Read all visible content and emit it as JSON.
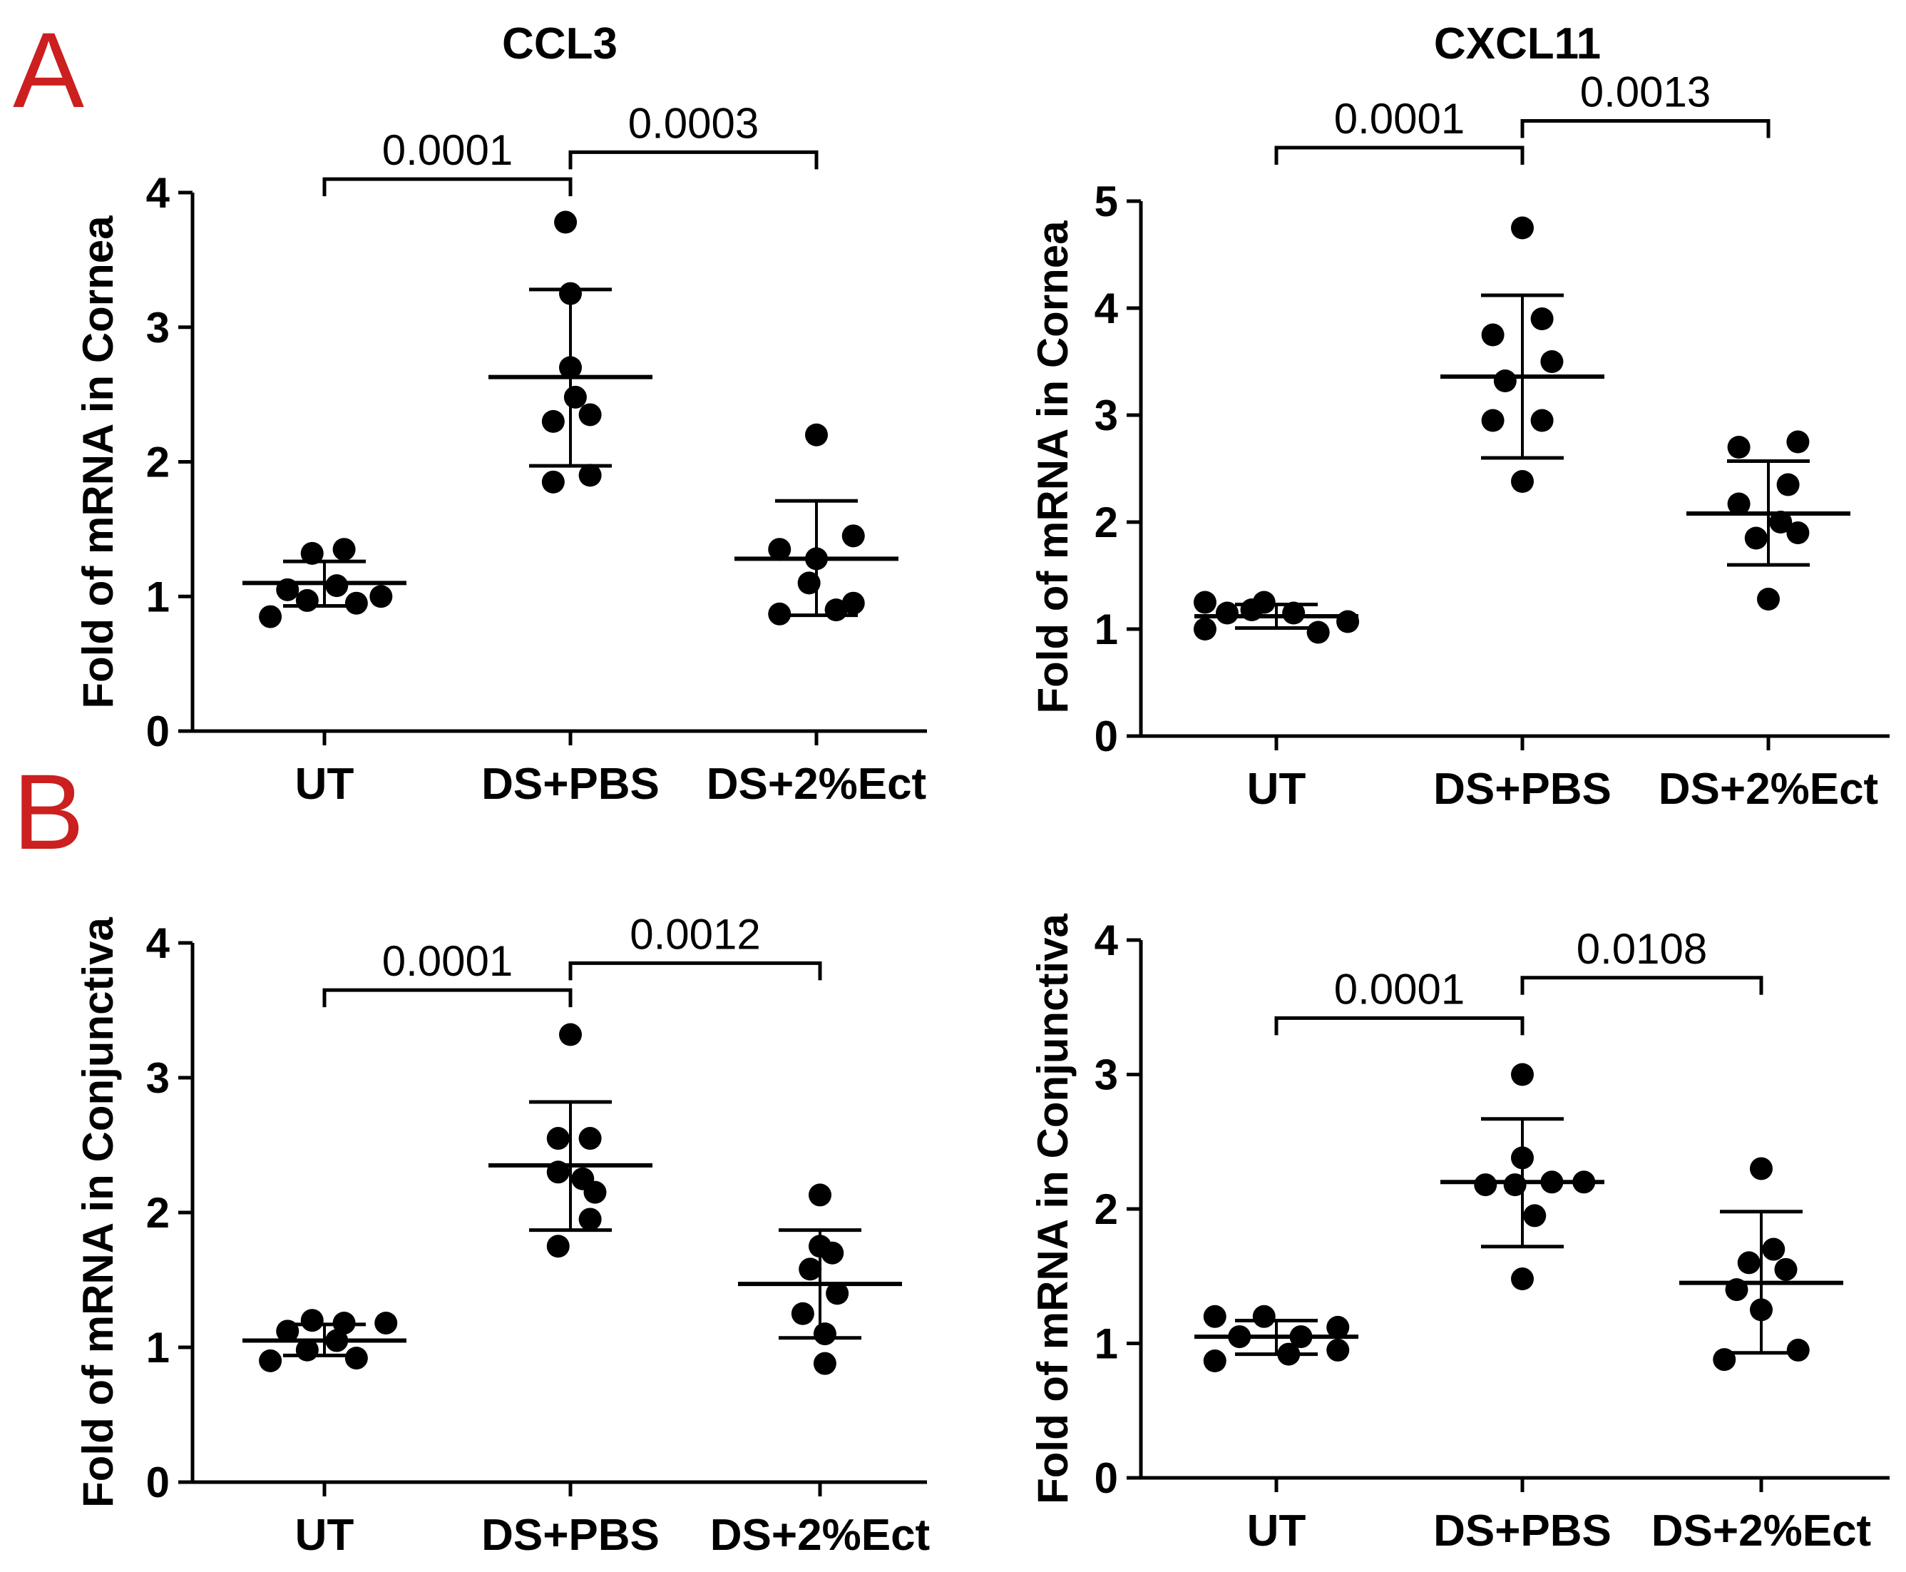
{
  "panel_letters": {
    "a": "A",
    "b": "B"
  },
  "chart_data": [
    {
      "type": "scatter",
      "panel": "A",
      "title": "CCL3",
      "xlabel": "",
      "ylabel": "Fold of mRNA in Cornea",
      "ylim": [
        0,
        4
      ],
      "yticks": [
        0,
        1,
        2,
        3,
        4
      ],
      "ytick_labels": [
        "0",
        "1",
        "2",
        "3",
        "4"
      ],
      "categories": [
        "UT",
        "DS+PBS",
        "DS+2%Ect"
      ],
      "groups": [
        {
          "name": "UT",
          "points": [
            {
              "dx": -0.22,
              "y": 0.85
            },
            {
              "dx": -0.15,
              "y": 1.05
            },
            {
              "dx": -0.07,
              "y": 0.97
            },
            {
              "dx": -0.05,
              "y": 1.32
            },
            {
              "dx": 0.05,
              "y": 1.08
            },
            {
              "dx": 0.08,
              "y": 1.35
            },
            {
              "dx": 0.13,
              "y": 0.95
            },
            {
              "dx": 0.23,
              "y": 1.0
            }
          ],
          "mean": 1.1,
          "sd_low": 0.93,
          "sd_high": 1.26
        },
        {
          "name": "DS+PBS",
          "points": [
            {
              "dx": -0.07,
              "y": 1.85
            },
            {
              "dx": -0.07,
              "y": 2.3
            },
            {
              "dx": -0.02,
              "y": 3.78
            },
            {
              "dx": 0.0,
              "y": 3.25
            },
            {
              "dx": 0.0,
              "y": 2.7
            },
            {
              "dx": 0.02,
              "y": 2.48
            },
            {
              "dx": 0.08,
              "y": 2.35
            },
            {
              "dx": 0.08,
              "y": 1.9
            }
          ],
          "mean": 2.63,
          "sd_low": 1.97,
          "sd_high": 3.28
        },
        {
          "name": "DS+2%Ect",
          "points": [
            {
              "dx": -0.15,
              "y": 0.87
            },
            {
              "dx": -0.15,
              "y": 1.35
            },
            {
              "dx": -0.03,
              "y": 1.1
            },
            {
              "dx": 0.0,
              "y": 2.2
            },
            {
              "dx": 0.0,
              "y": 1.28
            },
            {
              "dx": 0.08,
              "y": 0.9
            },
            {
              "dx": 0.15,
              "y": 1.45
            },
            {
              "dx": 0.15,
              "y": 0.95
            }
          ],
          "mean": 1.28,
          "sd_low": 0.86,
          "sd_high": 1.71
        }
      ],
      "comparisons": [
        {
          "from": 0,
          "to": 1,
          "label": "0.0001",
          "y": 4.1
        },
        {
          "from": 1,
          "to": 2,
          "label": "0.0003",
          "y": 4.3
        }
      ]
    },
    {
      "type": "scatter",
      "panel": "A",
      "title": "CXCL11",
      "xlabel": "",
      "ylabel": "Fold of mRNA in Cornea",
      "ylim": [
        0,
        5
      ],
      "yticks": [
        0,
        1,
        2,
        3,
        4,
        5
      ],
      "ytick_labels": [
        "0",
        "1",
        "2",
        "3",
        "4",
        "5"
      ],
      "categories": [
        "UT",
        "DS+PBS",
        "DS+2%Ect"
      ],
      "groups": [
        {
          "name": "UT",
          "points": [
            {
              "dx": -0.29,
              "y": 1.0
            },
            {
              "dx": -0.29,
              "y": 1.25
            },
            {
              "dx": -0.2,
              "y": 1.15
            },
            {
              "dx": -0.1,
              "y": 1.18
            },
            {
              "dx": -0.05,
              "y": 1.25
            },
            {
              "dx": 0.07,
              "y": 1.15
            },
            {
              "dx": 0.17,
              "y": 0.97
            },
            {
              "dx": 0.29,
              "y": 1.07
            }
          ],
          "mean": 1.12,
          "sd_low": 1.01,
          "sd_high": 1.23
        },
        {
          "name": "DS+PBS",
          "points": [
            {
              "dx": -0.12,
              "y": 3.75
            },
            {
              "dx": -0.12,
              "y": 2.95
            },
            {
              "dx": -0.07,
              "y": 3.32
            },
            {
              "dx": 0.0,
              "y": 4.75
            },
            {
              "dx": 0.0,
              "y": 2.38
            },
            {
              "dx": 0.08,
              "y": 3.9
            },
            {
              "dx": 0.08,
              "y": 2.95
            },
            {
              "dx": 0.12,
              "y": 3.5
            }
          ],
          "mean": 3.36,
          "sd_low": 2.6,
          "sd_high": 4.12
        },
        {
          "name": "DS+2%Ect",
          "points": [
            {
              "dx": -0.12,
              "y": 2.7
            },
            {
              "dx": -0.12,
              "y": 2.17
            },
            {
              "dx": -0.05,
              "y": 1.85
            },
            {
              "dx": 0.0,
              "y": 1.28
            },
            {
              "dx": 0.05,
              "y": 2.0
            },
            {
              "dx": 0.08,
              "y": 2.35
            },
            {
              "dx": 0.12,
              "y": 2.75
            },
            {
              "dx": 0.12,
              "y": 1.9
            }
          ],
          "mean": 2.08,
          "sd_low": 1.6,
          "sd_high": 2.57
        }
      ],
      "comparisons": [
        {
          "from": 0,
          "to": 1,
          "label": "0.0001",
          "y": 5.5
        },
        {
          "from": 1,
          "to": 2,
          "label": "0.0013",
          "y": 5.75
        }
      ]
    },
    {
      "type": "scatter",
      "panel": "B",
      "title": "",
      "xlabel": "",
      "ylabel": "Fold of mRNA in Conjunctiva",
      "ylim": [
        0,
        4
      ],
      "yticks": [
        0,
        1,
        2,
        3,
        4
      ],
      "ytick_labels": [
        "0",
        "1",
        "2",
        "3",
        "4"
      ],
      "categories": [
        "UT",
        "DS+PBS",
        "DS+2%Ect"
      ],
      "groups": [
        {
          "name": "UT",
          "points": [
            {
              "dx": -0.22,
              "y": 0.9
            },
            {
              "dx": -0.15,
              "y": 1.12
            },
            {
              "dx": -0.07,
              "y": 0.98
            },
            {
              "dx": -0.05,
              "y": 1.2
            },
            {
              "dx": 0.05,
              "y": 1.05
            },
            {
              "dx": 0.08,
              "y": 1.18
            },
            {
              "dx": 0.13,
              "y": 0.92
            },
            {
              "dx": 0.25,
              "y": 1.18
            }
          ],
          "mean": 1.05,
          "sd_low": 0.94,
          "sd_high": 1.17
        },
        {
          "name": "DS+PBS",
          "points": [
            {
              "dx": -0.05,
              "y": 1.75
            },
            {
              "dx": -0.05,
              "y": 2.3
            },
            {
              "dx": 0.0,
              "y": 3.32
            },
            {
              "dx": -0.05,
              "y": 2.55
            },
            {
              "dx": 0.08,
              "y": 2.55
            },
            {
              "dx": 0.08,
              "y": 1.95
            },
            {
              "dx": 0.05,
              "y": 2.25
            },
            {
              "dx": 0.1,
              "y": 2.15
            }
          ],
          "mean": 2.35,
          "sd_low": 1.87,
          "sd_high": 2.82
        },
        {
          "name": "DS+2%Ect",
          "points": [
            {
              "dx": -0.07,
              "y": 1.25
            },
            {
              "dx": -0.04,
              "y": 1.58
            },
            {
              "dx": 0.0,
              "y": 2.13
            },
            {
              "dx": 0.0,
              "y": 1.75
            },
            {
              "dx": 0.02,
              "y": 0.88
            },
            {
              "dx": 0.05,
              "y": 1.7
            },
            {
              "dx": 0.07,
              "y": 1.4
            },
            {
              "dx": 0.02,
              "y": 1.1
            }
          ],
          "mean": 1.47,
          "sd_low": 1.07,
          "sd_high": 1.87
        }
      ],
      "comparisons": [
        {
          "from": 0,
          "to": 1,
          "label": "0.0001",
          "y": 3.65
        },
        {
          "from": 1,
          "to": 2,
          "label": "0.0012",
          "y": 3.85
        }
      ]
    },
    {
      "type": "scatter",
      "panel": "B",
      "title": "",
      "xlabel": "",
      "ylabel": "Fold of mRNA in Conjunctiva",
      "ylim": [
        0,
        4
      ],
      "yticks": [
        0,
        1,
        2,
        3,
        4
      ],
      "ytick_labels": [
        "0",
        "1",
        "2",
        "3",
        "4"
      ],
      "categories": [
        "UT",
        "DS+PBS",
        "DS+2%Ect"
      ],
      "groups": [
        {
          "name": "UT",
          "points": [
            {
              "dx": -0.25,
              "y": 0.87
            },
            {
              "dx": -0.25,
              "y": 1.2
            },
            {
              "dx": -0.15,
              "y": 1.05
            },
            {
              "dx": -0.05,
              "y": 1.2
            },
            {
              "dx": 0.05,
              "y": 0.92
            },
            {
              "dx": 0.1,
              "y": 1.05
            },
            {
              "dx": 0.25,
              "y": 1.12
            },
            {
              "dx": 0.25,
              "y": 0.95
            }
          ],
          "mean": 1.05,
          "sd_low": 0.92,
          "sd_high": 1.17
        },
        {
          "name": "DS+PBS",
          "points": [
            {
              "dx": -0.15,
              "y": 2.18
            },
            {
              "dx": -0.03,
              "y": 2.18
            },
            {
              "dx": 0.0,
              "y": 3.0
            },
            {
              "dx": 0.0,
              "y": 2.38
            },
            {
              "dx": 0.0,
              "y": 1.48
            },
            {
              "dx": 0.05,
              "y": 1.95
            },
            {
              "dx": 0.12,
              "y": 2.2
            },
            {
              "dx": 0.25,
              "y": 2.2
            }
          ],
          "mean": 2.2,
          "sd_low": 1.72,
          "sd_high": 2.67
        },
        {
          "name": "DS+2%Ect",
          "points": [
            {
              "dx": -0.15,
              "y": 0.88
            },
            {
              "dx": -0.1,
              "y": 1.4
            },
            {
              "dx": -0.05,
              "y": 1.6
            },
            {
              "dx": 0.0,
              "y": 2.3
            },
            {
              "dx": 0.0,
              "y": 1.25
            },
            {
              "dx": 0.05,
              "y": 1.7
            },
            {
              "dx": 0.1,
              "y": 1.55
            },
            {
              "dx": 0.15,
              "y": 0.95
            }
          ],
          "mean": 1.45,
          "sd_low": 0.93,
          "sd_high": 1.98
        }
      ],
      "comparisons": [
        {
          "from": 0,
          "to": 1,
          "label": "0.0001",
          "y": 3.42
        },
        {
          "from": 1,
          "to": 2,
          "label": "0.0108",
          "y": 3.72
        }
      ]
    }
  ]
}
